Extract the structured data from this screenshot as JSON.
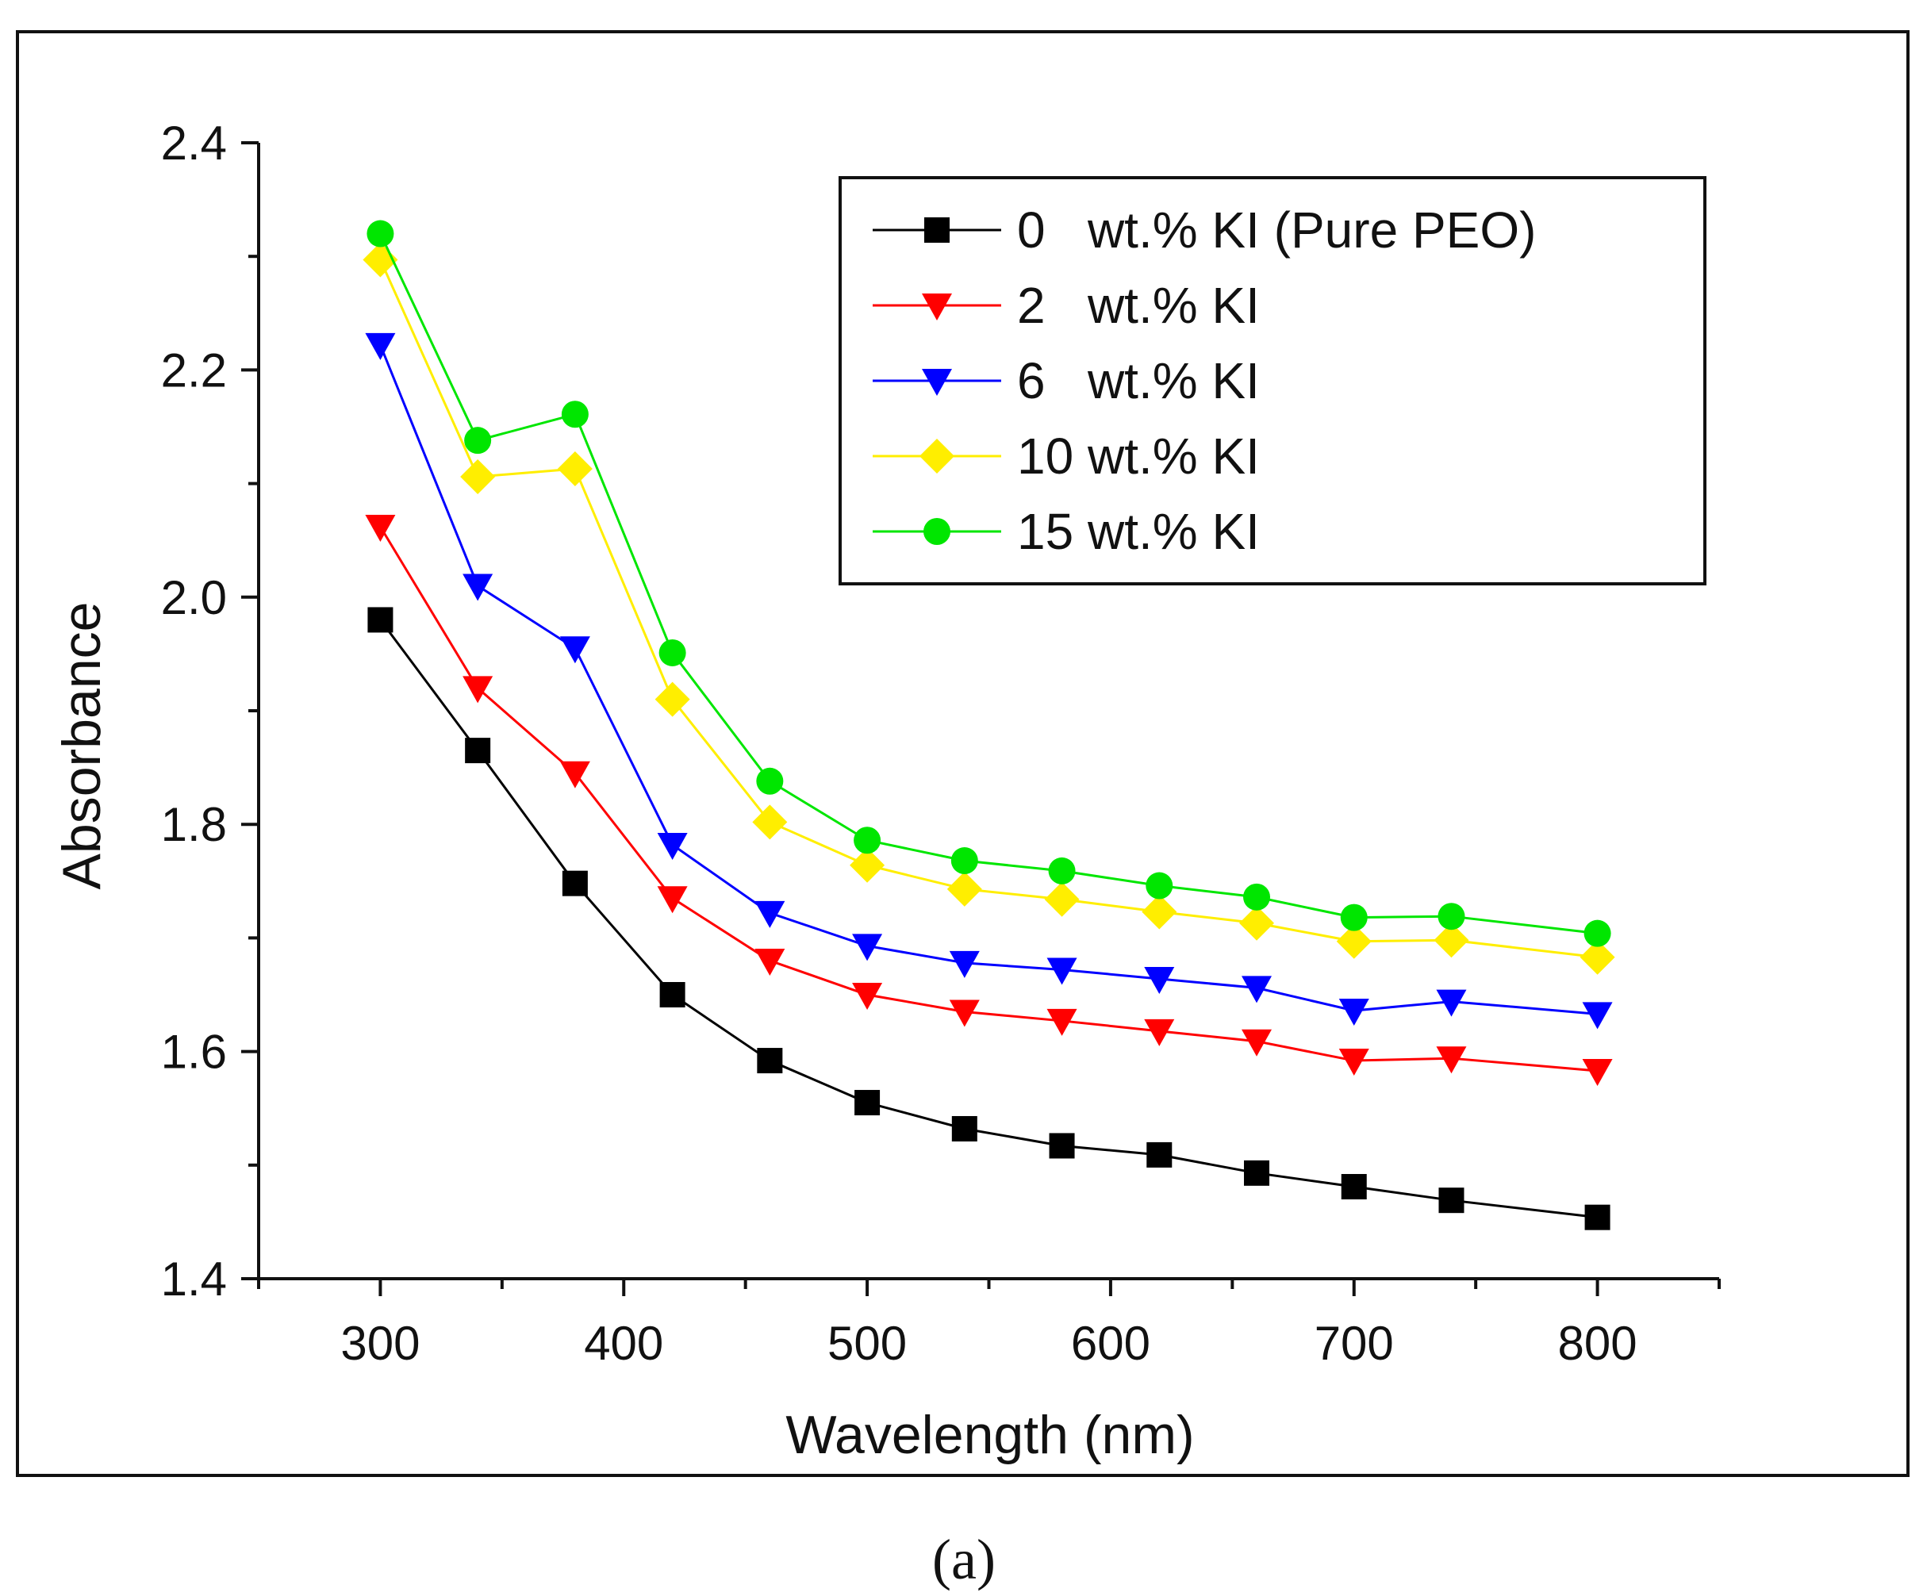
{
  "chart_data": {
    "type": "line",
    "title": "",
    "xlabel": "Wavelength (nm)",
    "ylabel": "Absorbance",
    "xlim": [
      250,
      850
    ],
    "ylim": [
      1.4,
      2.4
    ],
    "x_ticks": [
      300,
      400,
      500,
      600,
      700,
      800
    ],
    "y_ticks": [
      1.4,
      1.6,
      1.8,
      2.0,
      2.2,
      2.4
    ],
    "x_tick_labels": [
      "300",
      "400",
      "500",
      "600",
      "700",
      "800"
    ],
    "y_tick_labels": [
      "1.4",
      "1.6",
      "1.8",
      "2.0",
      "2.2",
      "2.4"
    ],
    "legend_position": "top-right",
    "grid": false,
    "x": [
      300,
      340,
      380,
      420,
      460,
      500,
      540,
      580,
      620,
      660,
      700,
      740,
      800
    ],
    "series": [
      {
        "name": "0   wt.% KI (Pure PEO)",
        "color": "#000000",
        "marker": "square",
        "values": [
          1.98,
          1.865,
          1.748,
          1.65,
          1.592,
          1.555,
          1.532,
          1.517,
          1.509,
          1.493,
          1.481,
          1.469,
          1.454
        ]
      },
      {
        "name": "2   wt.% KI",
        "color": "#ff0000",
        "marker": "triangle-down",
        "values": [
          2.062,
          1.92,
          1.845,
          1.735,
          1.68,
          1.65,
          1.635,
          1.627,
          1.618,
          1.609,
          1.592,
          1.594,
          1.583
        ]
      },
      {
        "name": "6   wt.% KI",
        "color": "#0000ff",
        "marker": "triangle-down",
        "values": [
          2.222,
          2.01,
          1.955,
          1.782,
          1.722,
          1.693,
          1.678,
          1.672,
          1.664,
          1.656,
          1.636,
          1.644,
          1.633
        ]
      },
      {
        "name": "10 wt.% KI",
        "color": "#ffee00",
        "marker": "diamond",
        "values": [
          2.297,
          2.106,
          2.113,
          1.91,
          1.802,
          1.764,
          1.743,
          1.734,
          1.723,
          1.713,
          1.697,
          1.698,
          1.683
        ]
      },
      {
        "name": "15 wt.% KI",
        "color": "#00e600",
        "marker": "circle",
        "values": [
          2.32,
          2.138,
          2.161,
          1.951,
          1.838,
          1.786,
          1.768,
          1.759,
          1.746,
          1.736,
          1.718,
          1.719,
          1.704
        ]
      }
    ],
    "caption": "(a)"
  }
}
